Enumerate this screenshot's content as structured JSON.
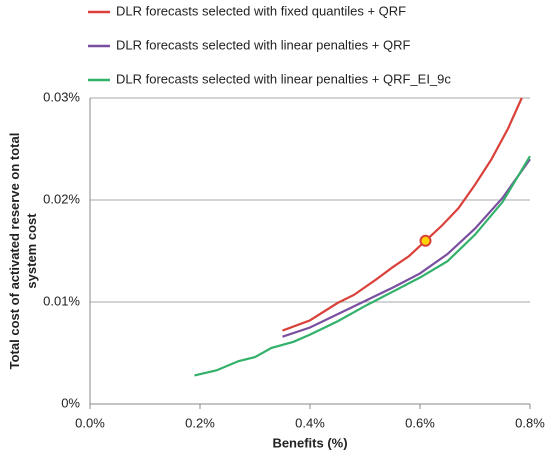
{
  "chart_data": {
    "type": "line",
    "xlabel": "Benefits (%)",
    "ylabel": "Total cost of activated reserve on total system cost",
    "xlim": [
      0,
      0.8
    ],
    "xticks": [
      {
        "value": 0,
        "label": "0.0%"
      },
      {
        "value": 0.2,
        "label": "0.2%"
      },
      {
        "value": 0.4,
        "label": "0.4%"
      },
      {
        "value": 0.6,
        "label": "0.6%"
      },
      {
        "value": 0.8,
        "label": "0.8%"
      }
    ],
    "ylim": [
      0,
      0.03
    ],
    "yticks": [
      {
        "value": 0,
        "label": "0%"
      },
      {
        "value": 0.01,
        "label": "0.01%"
      },
      {
        "value": 0.02,
        "label": "0.02%"
      },
      {
        "value": 0.03,
        "label": "0.03%"
      }
    ],
    "grid": true,
    "series": [
      {
        "name": "DLR forecasts selected with fixed quantiles + QRF",
        "color": "#d9413a",
        "x": [
          0.35,
          0.4,
          0.45,
          0.48,
          0.52,
          0.55,
          0.58,
          0.61,
          0.64,
          0.67,
          0.7,
          0.73,
          0.76,
          0.785
        ],
        "values": [
          0.0072,
          0.0082,
          0.0099,
          0.0107,
          0.0122,
          0.0134,
          0.0145,
          0.016,
          0.0175,
          0.0192,
          0.0215,
          0.024,
          0.027,
          0.03
        ]
      },
      {
        "name": "DLR forecasts selected with linear penalties + QRF",
        "color": "#7a4fa0",
        "x": [
          0.35,
          0.4,
          0.45,
          0.5,
          0.55,
          0.6,
          0.65,
          0.7,
          0.75,
          0.8
        ],
        "values": [
          0.0066,
          0.0075,
          0.0088,
          0.0101,
          0.0114,
          0.0128,
          0.0147,
          0.0172,
          0.0202,
          0.024
        ]
      },
      {
        "name": "DLR forecasts selected with linear penalties + QRF_EI_9c",
        "color": "#33b16b",
        "x": [
          0.19,
          0.23,
          0.27,
          0.3,
          0.33,
          0.37,
          0.4,
          0.45,
          0.5,
          0.55,
          0.6,
          0.65,
          0.7,
          0.75,
          0.8
        ],
        "values": [
          0.0028,
          0.0033,
          0.0042,
          0.0046,
          0.0055,
          0.0061,
          0.0068,
          0.0081,
          0.0096,
          0.011,
          0.0124,
          0.014,
          0.0166,
          0.0198,
          0.0243
        ]
      }
    ],
    "highlight": {
      "x": 0.61,
      "y": 0.016
    }
  }
}
